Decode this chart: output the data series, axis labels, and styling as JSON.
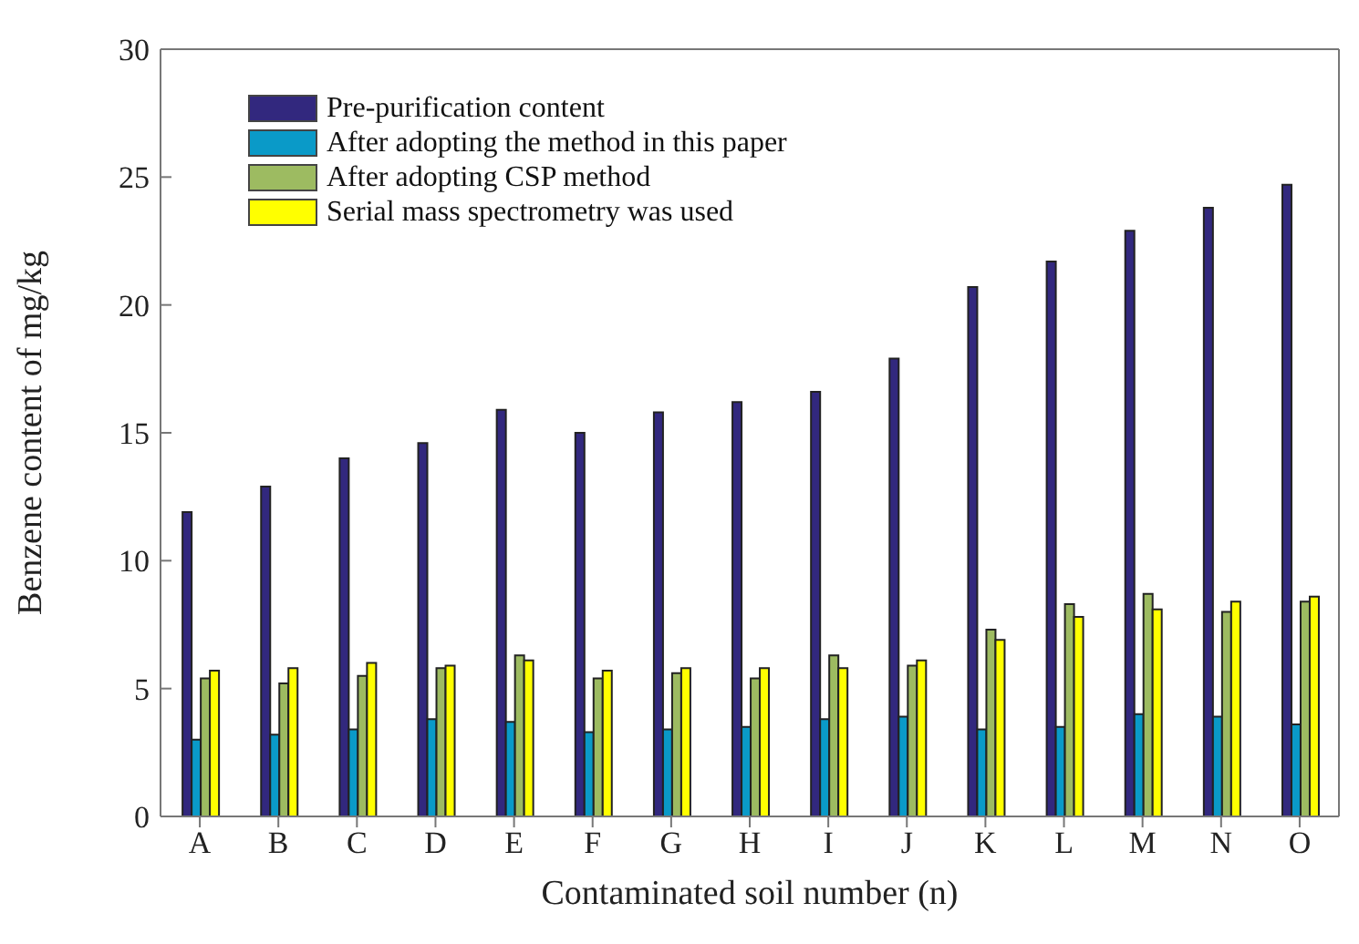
{
  "chart_data": {
    "type": "bar",
    "xlabel": "Contaminated soil number (n)",
    "ylabel": "Benzene content of mg/kg",
    "categories": [
      "A",
      "B",
      "C",
      "D",
      "E",
      "F",
      "G",
      "H",
      "I",
      "J",
      "K",
      "L",
      "M",
      "N",
      "O"
    ],
    "series": [
      {
        "name": "Pre-purification content",
        "color": "#32287e",
        "values": [
          11.9,
          12.9,
          14.0,
          14.6,
          15.9,
          15.0,
          15.8,
          16.2,
          16.6,
          17.9,
          20.7,
          21.7,
          22.9,
          23.8,
          24.7
        ]
      },
      {
        "name": "After adopting the method in this paper",
        "color": "#0a9ac8",
        "values": [
          3.0,
          3.2,
          3.4,
          3.8,
          3.7,
          3.3,
          3.4,
          3.5,
          3.8,
          3.9,
          3.4,
          3.5,
          4.0,
          3.9,
          3.6
        ]
      },
      {
        "name": "After adopting CSP method",
        "color": "#9dbb61",
        "values": [
          5.4,
          5.2,
          5.5,
          5.8,
          6.3,
          5.4,
          5.6,
          5.4,
          6.3,
          5.9,
          7.3,
          8.3,
          8.7,
          8.0,
          8.4
        ]
      },
      {
        "name": "Serial mass spectrometry was used",
        "color": "#ffff00",
        "values": [
          5.7,
          5.8,
          6.0,
          5.9,
          6.1,
          5.7,
          5.8,
          5.8,
          5.8,
          6.1,
          6.9,
          7.8,
          8.1,
          8.4,
          8.6
        ]
      }
    ],
    "ylim": [
      0,
      30
    ],
    "yticks": [
      0,
      5,
      10,
      15,
      20,
      25,
      30
    ],
    "grid": false,
    "legend": "top left"
  }
}
